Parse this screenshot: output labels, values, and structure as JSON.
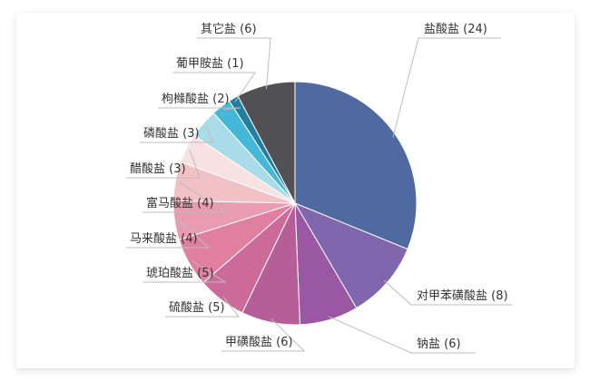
{
  "chart_data": {
    "type": "pie",
    "series": [
      {
        "label": "盐酸盐 (24)",
        "value": 24,
        "color": "#4f6aa0"
      },
      {
        "label": "对甲苯磺酸盐 (8)",
        "value": 8,
        "color": "#8066ad"
      },
      {
        "label": "钠盐 (6)",
        "value": 6,
        "color": "#9a57a3"
      },
      {
        "label": "甲磺酸盐 (6)",
        "value": 6,
        "color": "#b65e97"
      },
      {
        "label": "硫酸盐 (5)",
        "value": 5,
        "color": "#cc6b9a"
      },
      {
        "label": "琥珀酸盐 (5)",
        "value": 5,
        "color": "#e07f9f"
      },
      {
        "label": "马来酸盐 (4)",
        "value": 4,
        "color": "#e99bb1"
      },
      {
        "label": "富马酸盐 (4)",
        "value": 4,
        "color": "#f2c1c6"
      },
      {
        "label": "醋酸盐 (3)",
        "value": 3,
        "color": "#f7e1e2"
      },
      {
        "label": "磷酸盐 (3)",
        "value": 3,
        "color": "#a9dce8"
      },
      {
        "label": "枸橼酸盐 (2)",
        "value": 2,
        "color": "#44b8d6"
      },
      {
        "label": "葡甲胺盐 (1)",
        "value": 1,
        "color": "#237fa0"
      },
      {
        "label": "其它盐 (6)",
        "value": 6,
        "color": "#505055"
      }
    ]
  }
}
